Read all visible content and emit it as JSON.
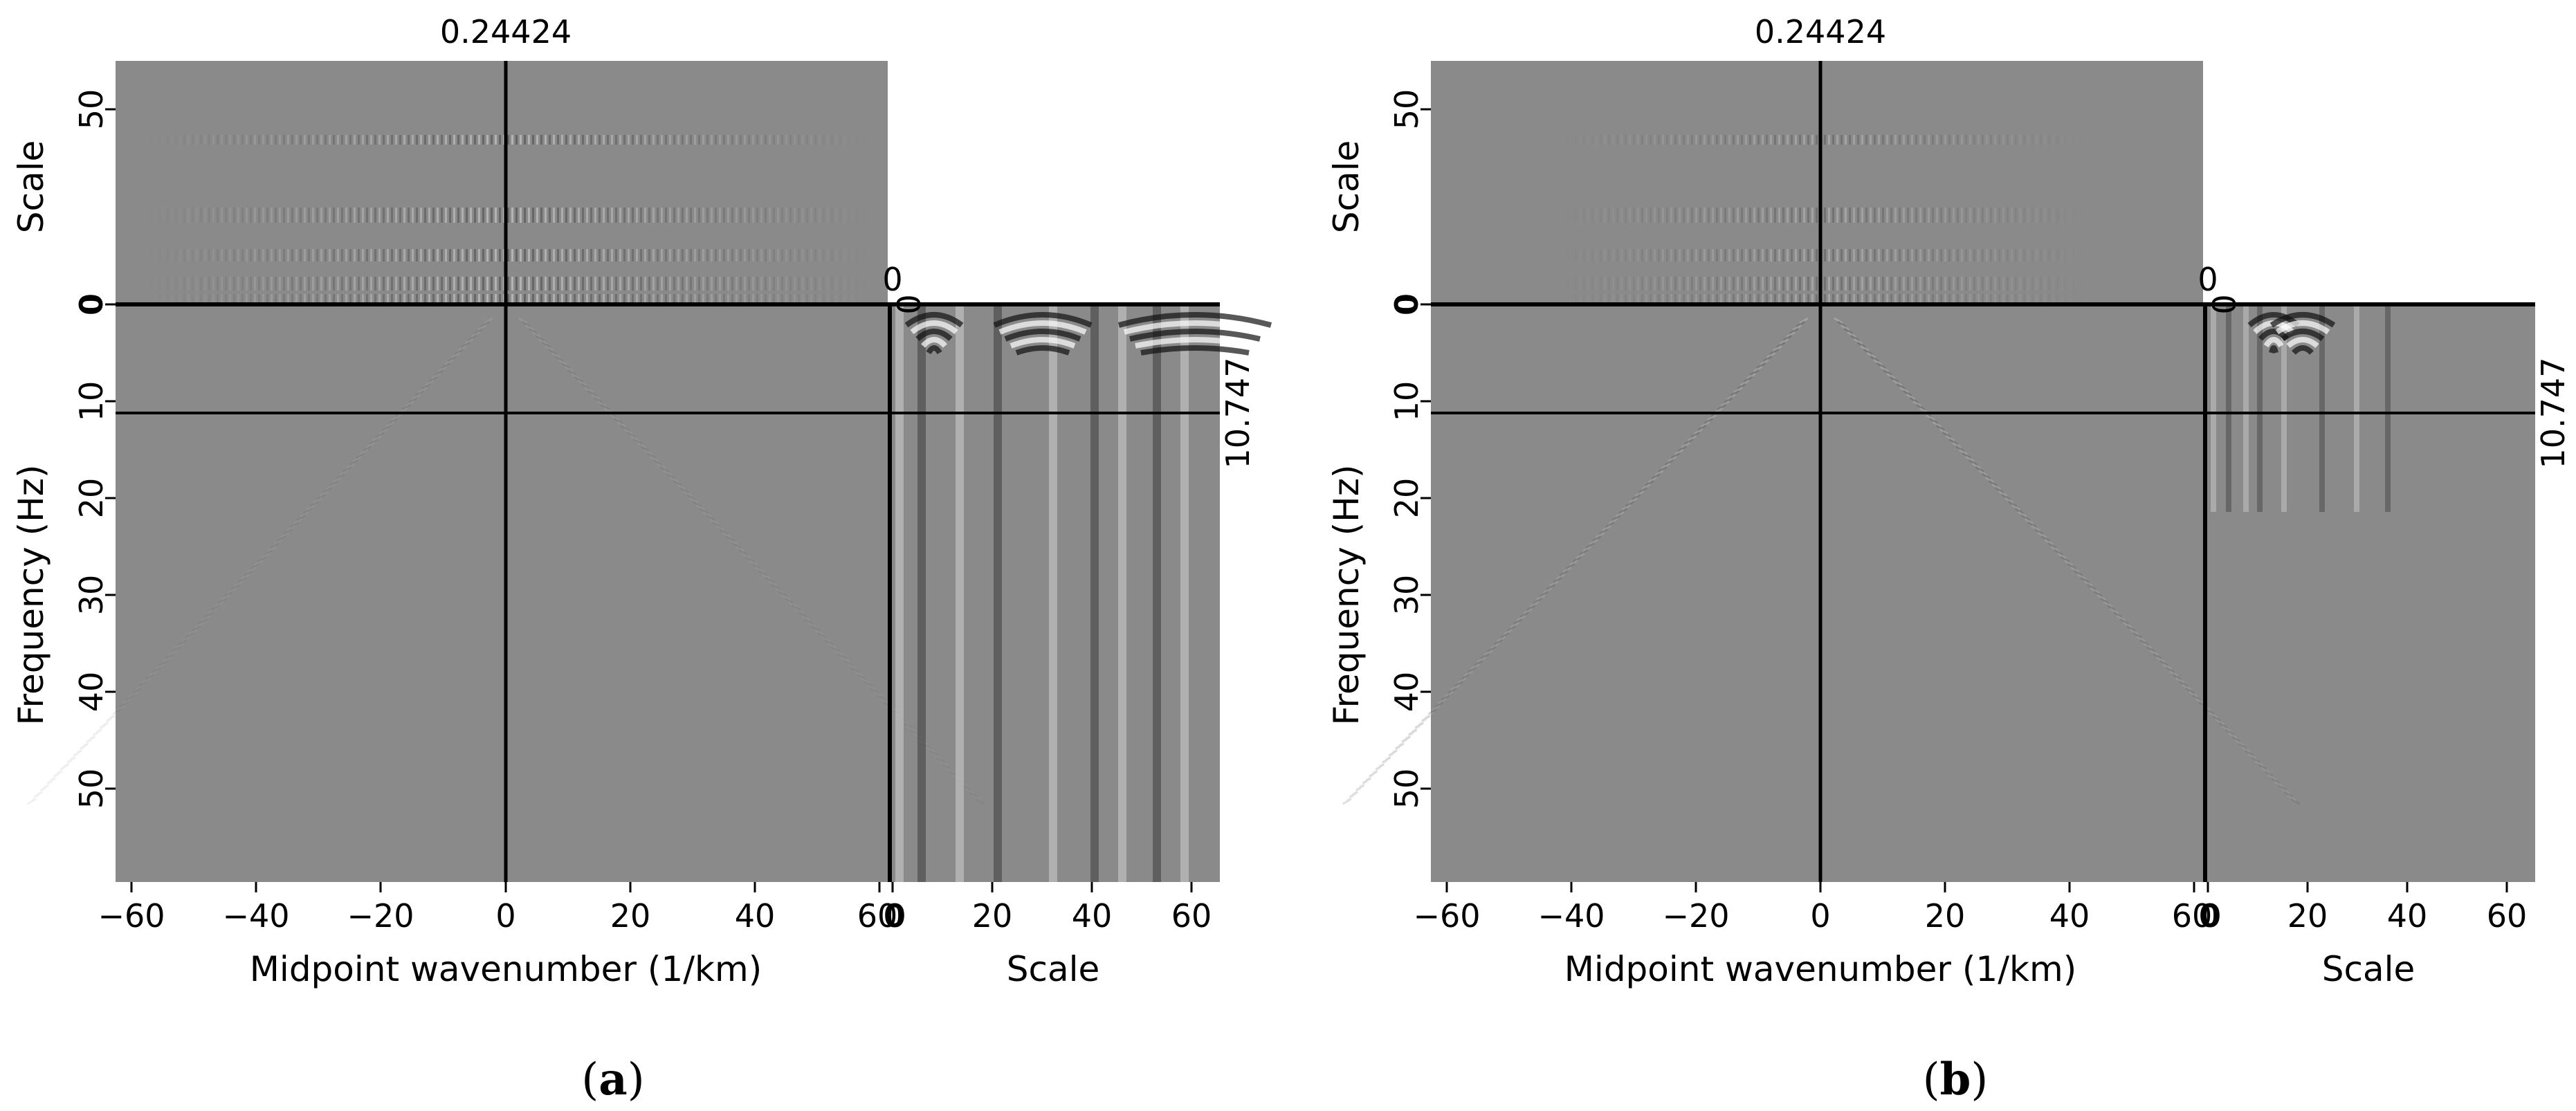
{
  "figure": {
    "panels": [
      {
        "id": "a",
        "caption_open": "(",
        "caption_letter": "a",
        "caption_close": ")",
        "top_value_label": "0.24424",
        "right_value_label": "10.747",
        "corner_zero_label": "0",
        "corner_zero_label_2": "0",
        "main_ylabel": "Frequency (Hz)",
        "top_ylabel": "Scale",
        "xlabel": "Midpoint wavenumber (1/km)",
        "side_xlabel": "Scale",
        "top_yticks": [
          "0",
          "50"
        ],
        "main_yticks": [
          "0",
          "10",
          "20",
          "30",
          "40",
          "50"
        ],
        "main_xticks": [
          "−60",
          "−40",
          "−20",
          "0",
          "20",
          "40",
          "60"
        ],
        "side_xticks": [
          "0",
          "20",
          "40",
          "60"
        ],
        "pattern": "strong"
      },
      {
        "id": "b",
        "caption_open": "(",
        "caption_letter": "b",
        "caption_close": ")",
        "top_value_label": "0.24424",
        "right_value_label": "10.747",
        "corner_zero_label": "0",
        "corner_zero_label_2": "0",
        "main_ylabel": "Frequency (Hz)",
        "top_ylabel": "Scale",
        "xlabel": "Midpoint wavenumber (1/km)",
        "side_xlabel": "Scale",
        "top_yticks": [
          "0",
          "50"
        ],
        "main_yticks": [
          "0",
          "10",
          "20",
          "30",
          "40",
          "50"
        ],
        "main_xticks": [
          "−60",
          "−40",
          "−20",
          "0",
          "20",
          "40",
          "60"
        ],
        "side_xticks": [
          "0",
          "20",
          "40",
          "60"
        ],
        "pattern": "weak"
      }
    ],
    "colors": {
      "background_gray": "#8a8a8a",
      "line": "#000000"
    }
  }
}
